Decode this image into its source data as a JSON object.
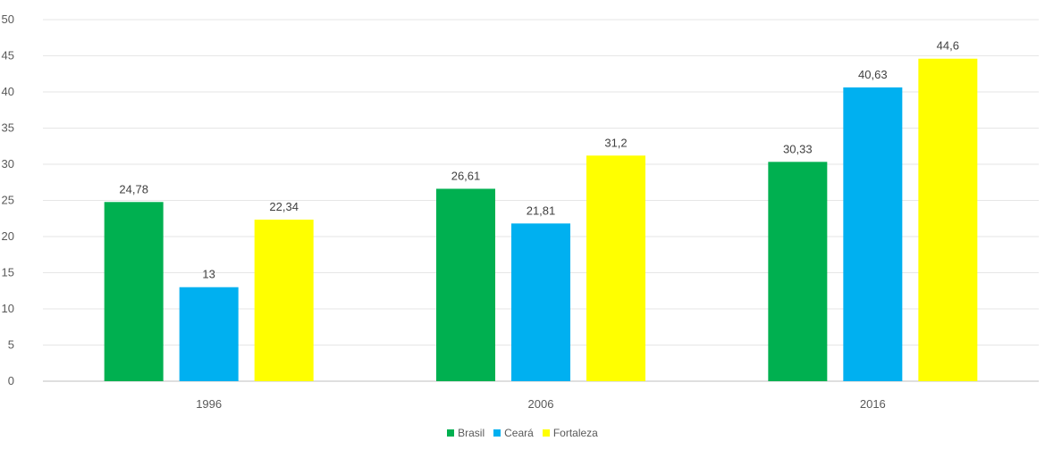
{
  "chart_data": {
    "type": "bar",
    "categories": [
      "1996",
      "2006",
      "2016"
    ],
    "series": [
      {
        "name": "Brasil",
        "color": "#00B050",
        "values": [
          24.78,
          26.61,
          30.33
        ],
        "labels": [
          "24,78",
          "26,61",
          "30,33"
        ]
      },
      {
        "name": "Ceará",
        "color": "#00B0F0",
        "values": [
          13,
          21.81,
          40.63
        ],
        "labels": [
          "13",
          "21,81",
          "40,63"
        ]
      },
      {
        "name": "Fortaleza",
        "color": "#FFFF00",
        "values": [
          22.34,
          31.2,
          44.6
        ],
        "labels": [
          "22,34",
          "31,2",
          "44,6"
        ]
      }
    ],
    "yticks": [
      "0",
      "5",
      "10",
      "15",
      "20",
      "25",
      "30",
      "35",
      "40",
      "45",
      "50"
    ],
    "ylim": [
      0,
      50
    ],
    "grid": true,
    "legend_position": "bottom"
  }
}
